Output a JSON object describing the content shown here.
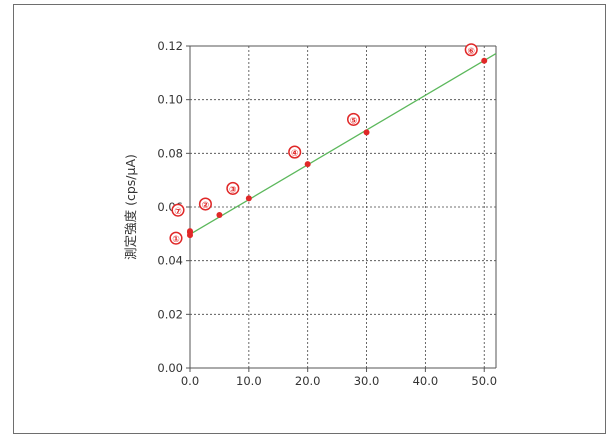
{
  "chart_data": {
    "type": "scatter",
    "title": "",
    "xlabel": "",
    "ylabel": "測定強度 (cps/μA)",
    "xlim": [
      0,
      52
    ],
    "ylim": [
      0,
      0.12
    ],
    "x_ticks": [
      0,
      10,
      20,
      30,
      40,
      50
    ],
    "x_tick_labels": [
      "0.0",
      "10.0",
      "20.0",
      "30.0",
      "40.0",
      "50.0"
    ],
    "y_ticks": [
      0,
      0.02,
      0.04,
      0.06,
      0.08,
      0.1,
      0.12
    ],
    "y_tick_labels": [
      "0.00",
      "0.02",
      "0.04",
      "0.06",
      "0.08",
      "0.10",
      "0.12"
    ],
    "grid": true,
    "legend": "none",
    "colors": {
      "points": "#e02828",
      "fit_line": "#5cb85c",
      "grid": "#444444",
      "axis": "#555555"
    },
    "points": [
      {
        "x": 0,
        "y": 0.0495,
        "label": "①"
      },
      {
        "x": 0,
        "y": 0.0505
      },
      {
        "x": 5,
        "y": 0.057,
        "label": "②"
      },
      {
        "x": 10,
        "y": 0.0632,
        "label": "③"
      },
      {
        "x": 20,
        "y": 0.076,
        "label": "④"
      },
      {
        "x": 30,
        "y": 0.0878,
        "label": "⑤"
      },
      {
        "x": 50,
        "y": 0.1145,
        "label": "⑥"
      },
      {
        "x": 0,
        "y": 0.051,
        "label": "⑦"
      }
    ],
    "fit_line": {
      "x": [
        0,
        52
      ],
      "y": [
        0.0498,
        0.1172
      ]
    }
  }
}
